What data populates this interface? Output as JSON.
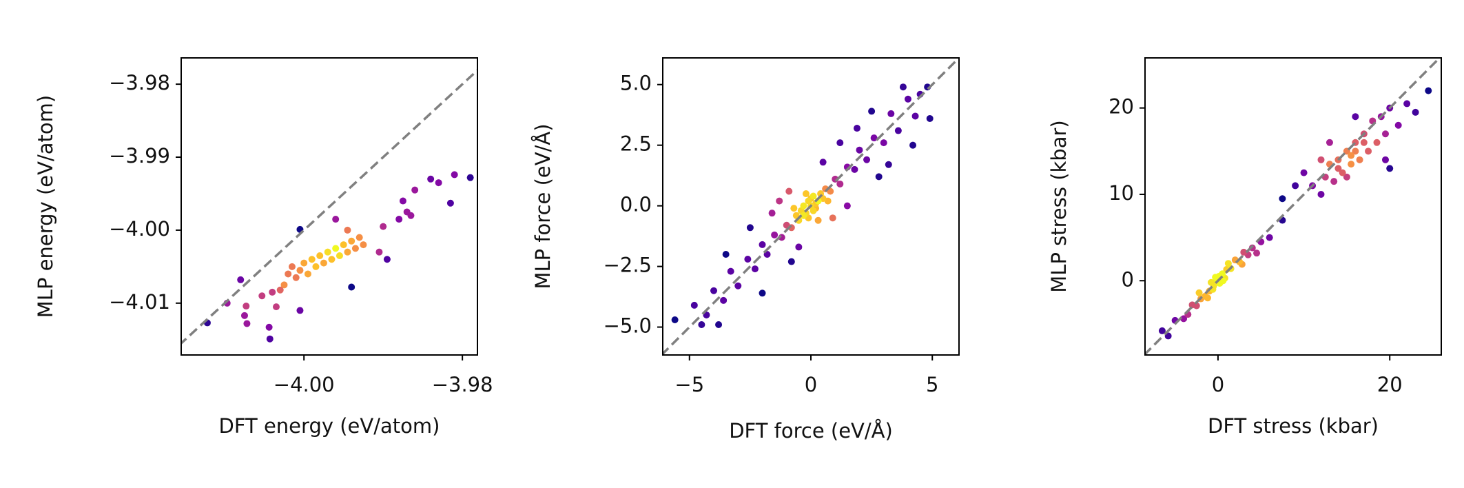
{
  "chart_data": [
    {
      "type": "scatter",
      "xlabel": "DFT energy (eV/atom)",
      "ylabel": "MLP energy (eV/atom)",
      "colormap": "plasma",
      "identity_line": true,
      "xlim": [
        -4.0155,
        -3.9781
      ],
      "ylim": [
        -4.0171,
        -3.9764
      ],
      "xticks": [
        {
          "value": -4.0,
          "label": "−4.00"
        },
        {
          "value": -3.98,
          "label": "−3.98"
        }
      ],
      "yticks": [
        {
          "value": -3.98,
          "label": "−3.98"
        },
        {
          "value": -3.99,
          "label": "−3.99"
        },
        {
          "value": -4.0,
          "label": "−4.00"
        },
        {
          "value": -4.01,
          "label": "−4.01"
        }
      ],
      "x": [
        -4.0122,
        -4.0097,
        -4.008,
        -4.0075,
        -4.0072,
        -4.0073,
        -4.0044,
        -4.0043,
        -4.0053,
        -4.004,
        -4.003,
        -4.0025,
        -4.002,
        -4.0015,
        -4.001,
        -4.0005,
        -4.0,
        -3.9995,
        -3.999,
        -3.9985,
        -3.998,
        -3.9975,
        -3.997,
        -3.9965,
        -3.996,
        -3.9955,
        -3.995,
        -3.9945,
        -3.994,
        -3.9935,
        -3.993,
        -3.9925,
        -3.9945,
        -3.996,
        -4.0005,
        -3.994,
        -3.9905,
        -3.9895,
        -3.99,
        -3.988,
        -3.9875,
        -3.987,
        -3.9865,
        -3.986,
        -3.984,
        -3.983,
        -3.9815,
        -3.981,
        -3.979,
        -4.0035,
        -4.0005
      ],
      "values": [
        -4.0127,
        -4.01,
        -4.0068,
        -4.0117,
        -4.0128,
        -4.0104,
        -4.0133,
        -4.0149,
        -4.009,
        -4.0085,
        -4.0082,
        -4.0075,
        -4.006,
        -4.005,
        -4.0065,
        -4.0055,
        -4.0045,
        -4.006,
        -4.004,
        -4.005,
        -4.0035,
        -4.0045,
        -4.003,
        -4.004,
        -4.0025,
        -4.0035,
        -4.002,
        -4.003,
        -4.0015,
        -4.0025,
        -4.001,
        -4.002,
        -4.0,
        -3.9985,
        -3.9999,
        -4.0078,
        -4.003,
        -4.004,
        -3.9995,
        -3.9985,
        -3.996,
        -3.9975,
        -3.998,
        -3.9945,
        -3.993,
        -3.9935,
        -3.9963,
        -3.9924,
        -3.9928,
        -4.0105,
        -4.011
      ]
    },
    {
      "type": "scatter",
      "xlabel": "DFT force (eV/Å)",
      "ylabel": "MLP force (eV/Å)",
      "colormap": "plasma",
      "identity_line": true,
      "xlim": [
        -6.1,
        6.1
      ],
      "ylim": [
        -6.15,
        6.1
      ],
      "xticks": [
        {
          "value": -5,
          "label": "−5"
        },
        0,
        5
      ],
      "yticks": [
        {
          "value": 5,
          "label": "5.0"
        },
        {
          "value": 2.5,
          "label": "2.5"
        },
        {
          "value": 0,
          "label": "0.0"
        },
        {
          "value": -2.5,
          "label": "−2.5"
        },
        {
          "value": -5,
          "label": "−5.0"
        }
      ],
      "x": [
        0,
        0.2,
        -0.2,
        0.4,
        -0.4,
        0.1,
        -0.1,
        0.3,
        -0.3,
        0.5,
        -0.5,
        0.6,
        -0.6,
        0.8,
        -0.8,
        1.0,
        -1.0,
        1.2,
        -1.2,
        1.5,
        -1.5,
        1.8,
        -1.8,
        2.0,
        -2.0,
        2.3,
        -2.3,
        2.6,
        -2.6,
        3.0,
        -3.0,
        3.3,
        -3.3,
        3.6,
        -3.6,
        4.0,
        -4.0,
        4.3,
        -4.3,
        4.8,
        -4.8,
        -5.6,
        -4.5,
        4.5,
        3.8,
        2.5,
        1.2,
        -1.3,
        -2.5,
        -3.5,
        2.8,
        1.5,
        -0.8,
        -2.0,
        3.2,
        0.5,
        -0.5,
        4.2,
        -3.8,
        4.9,
        -1.6,
        1.9,
        0.9,
        -0.9,
        0.3,
        -0.2,
        0.1,
        -0.1,
        0.7,
        -0.7,
        0.0,
        0.2,
        -0.3
      ],
      "values": [
        0,
        0.1,
        -0.3,
        0.5,
        -0.2,
        -0.2,
        0.2,
        0.2,
        -0.4,
        0.3,
        -0.6,
        0.7,
        -0.4,
        0.6,
        -0.9,
        1.1,
        -0.8,
        0.9,
        -1.3,
        1.6,
        -1.2,
        1.5,
        -2.0,
        2.3,
        -1.6,
        1.9,
        -2.6,
        2.8,
        -2.2,
        2.6,
        -3.3,
        3.8,
        -2.7,
        3.1,
        -3.9,
        4.4,
        -3.5,
        3.7,
        -4.5,
        4.9,
        -4.1,
        -4.7,
        -4.9,
        4.6,
        4.9,
        3.9,
        2.6,
        0.2,
        -0.9,
        -2.0,
        1.2,
        0.0,
        -2.3,
        -3.6,
        1.7,
        1.8,
        -1.7,
        2.5,
        -4.9,
        3.6,
        -0.3,
        3.2,
        -0.5,
        0.6,
        -0.6,
        0.5,
        0.4,
        -0.5,
        0.2,
        -0.1,
        0.3,
        -0.1,
        0.0
      ]
    },
    {
      "type": "scatter",
      "xlabel": "DFT stress (kbar)",
      "ylabel": "MLP stress (kbar)",
      "colormap": "plasma",
      "identity_line": true,
      "xlim": [
        -8.5,
        26.0
      ],
      "ylim": [
        -8.6,
        25.8
      ],
      "xticks": [
        0,
        20
      ],
      "yticks": [
        0,
        10,
        20
      ],
      "x": [
        0,
        0.5,
        -0.5,
        1,
        -1,
        1.5,
        -1.5,
        2,
        -2,
        2.5,
        -2.5,
        3,
        -3,
        3.5,
        -3.5,
        4,
        -4,
        5,
        -5,
        6,
        -6.5,
        -5.8,
        0.2,
        -0.3,
        0.8,
        -0.8,
        1.2,
        -1.2,
        0.1,
        -0.2,
        2.8,
        -2.2,
        4.5,
        0.6,
        -0.6,
        11,
        12,
        12.5,
        13,
        13.5,
        14,
        14.5,
        15,
        15.5,
        16,
        16.5,
        17,
        17.5,
        18,
        18.5,
        19,
        19.5,
        20,
        21,
        22,
        23,
        24.5,
        16,
        13,
        12,
        10,
        9,
        7.5,
        7.5,
        20,
        19.5,
        15,
        14,
        16,
        17,
        15.5
      ],
      "values": [
        0,
        0.8,
        -0.6,
        1.3,
        -1.2,
        1.4,
        -1.8,
        2.4,
        -2.1,
        2.2,
        -2.9,
        3.3,
        -2.8,
        3.0,
        -3.9,
        3.8,
        -4.4,
        4.5,
        -4.6,
        5,
        -5.8,
        -6.4,
        -0.3,
        0.4,
        0.3,
        -0.2,
        2.0,
        -2.0,
        0.5,
        -0.1,
        1.9,
        -1.4,
        3.2,
        0.0,
        -1.0,
        11,
        10,
        12,
        13.5,
        11.5,
        14,
        12.5,
        15,
        13.5,
        16,
        14,
        17,
        15,
        18.5,
        16,
        19,
        17,
        20,
        18,
        20.5,
        19.5,
        22,
        19,
        16,
        14,
        12.5,
        11,
        9.5,
        7,
        13,
        14,
        12,
        13,
        15,
        16,
        14.5
      ]
    }
  ]
}
